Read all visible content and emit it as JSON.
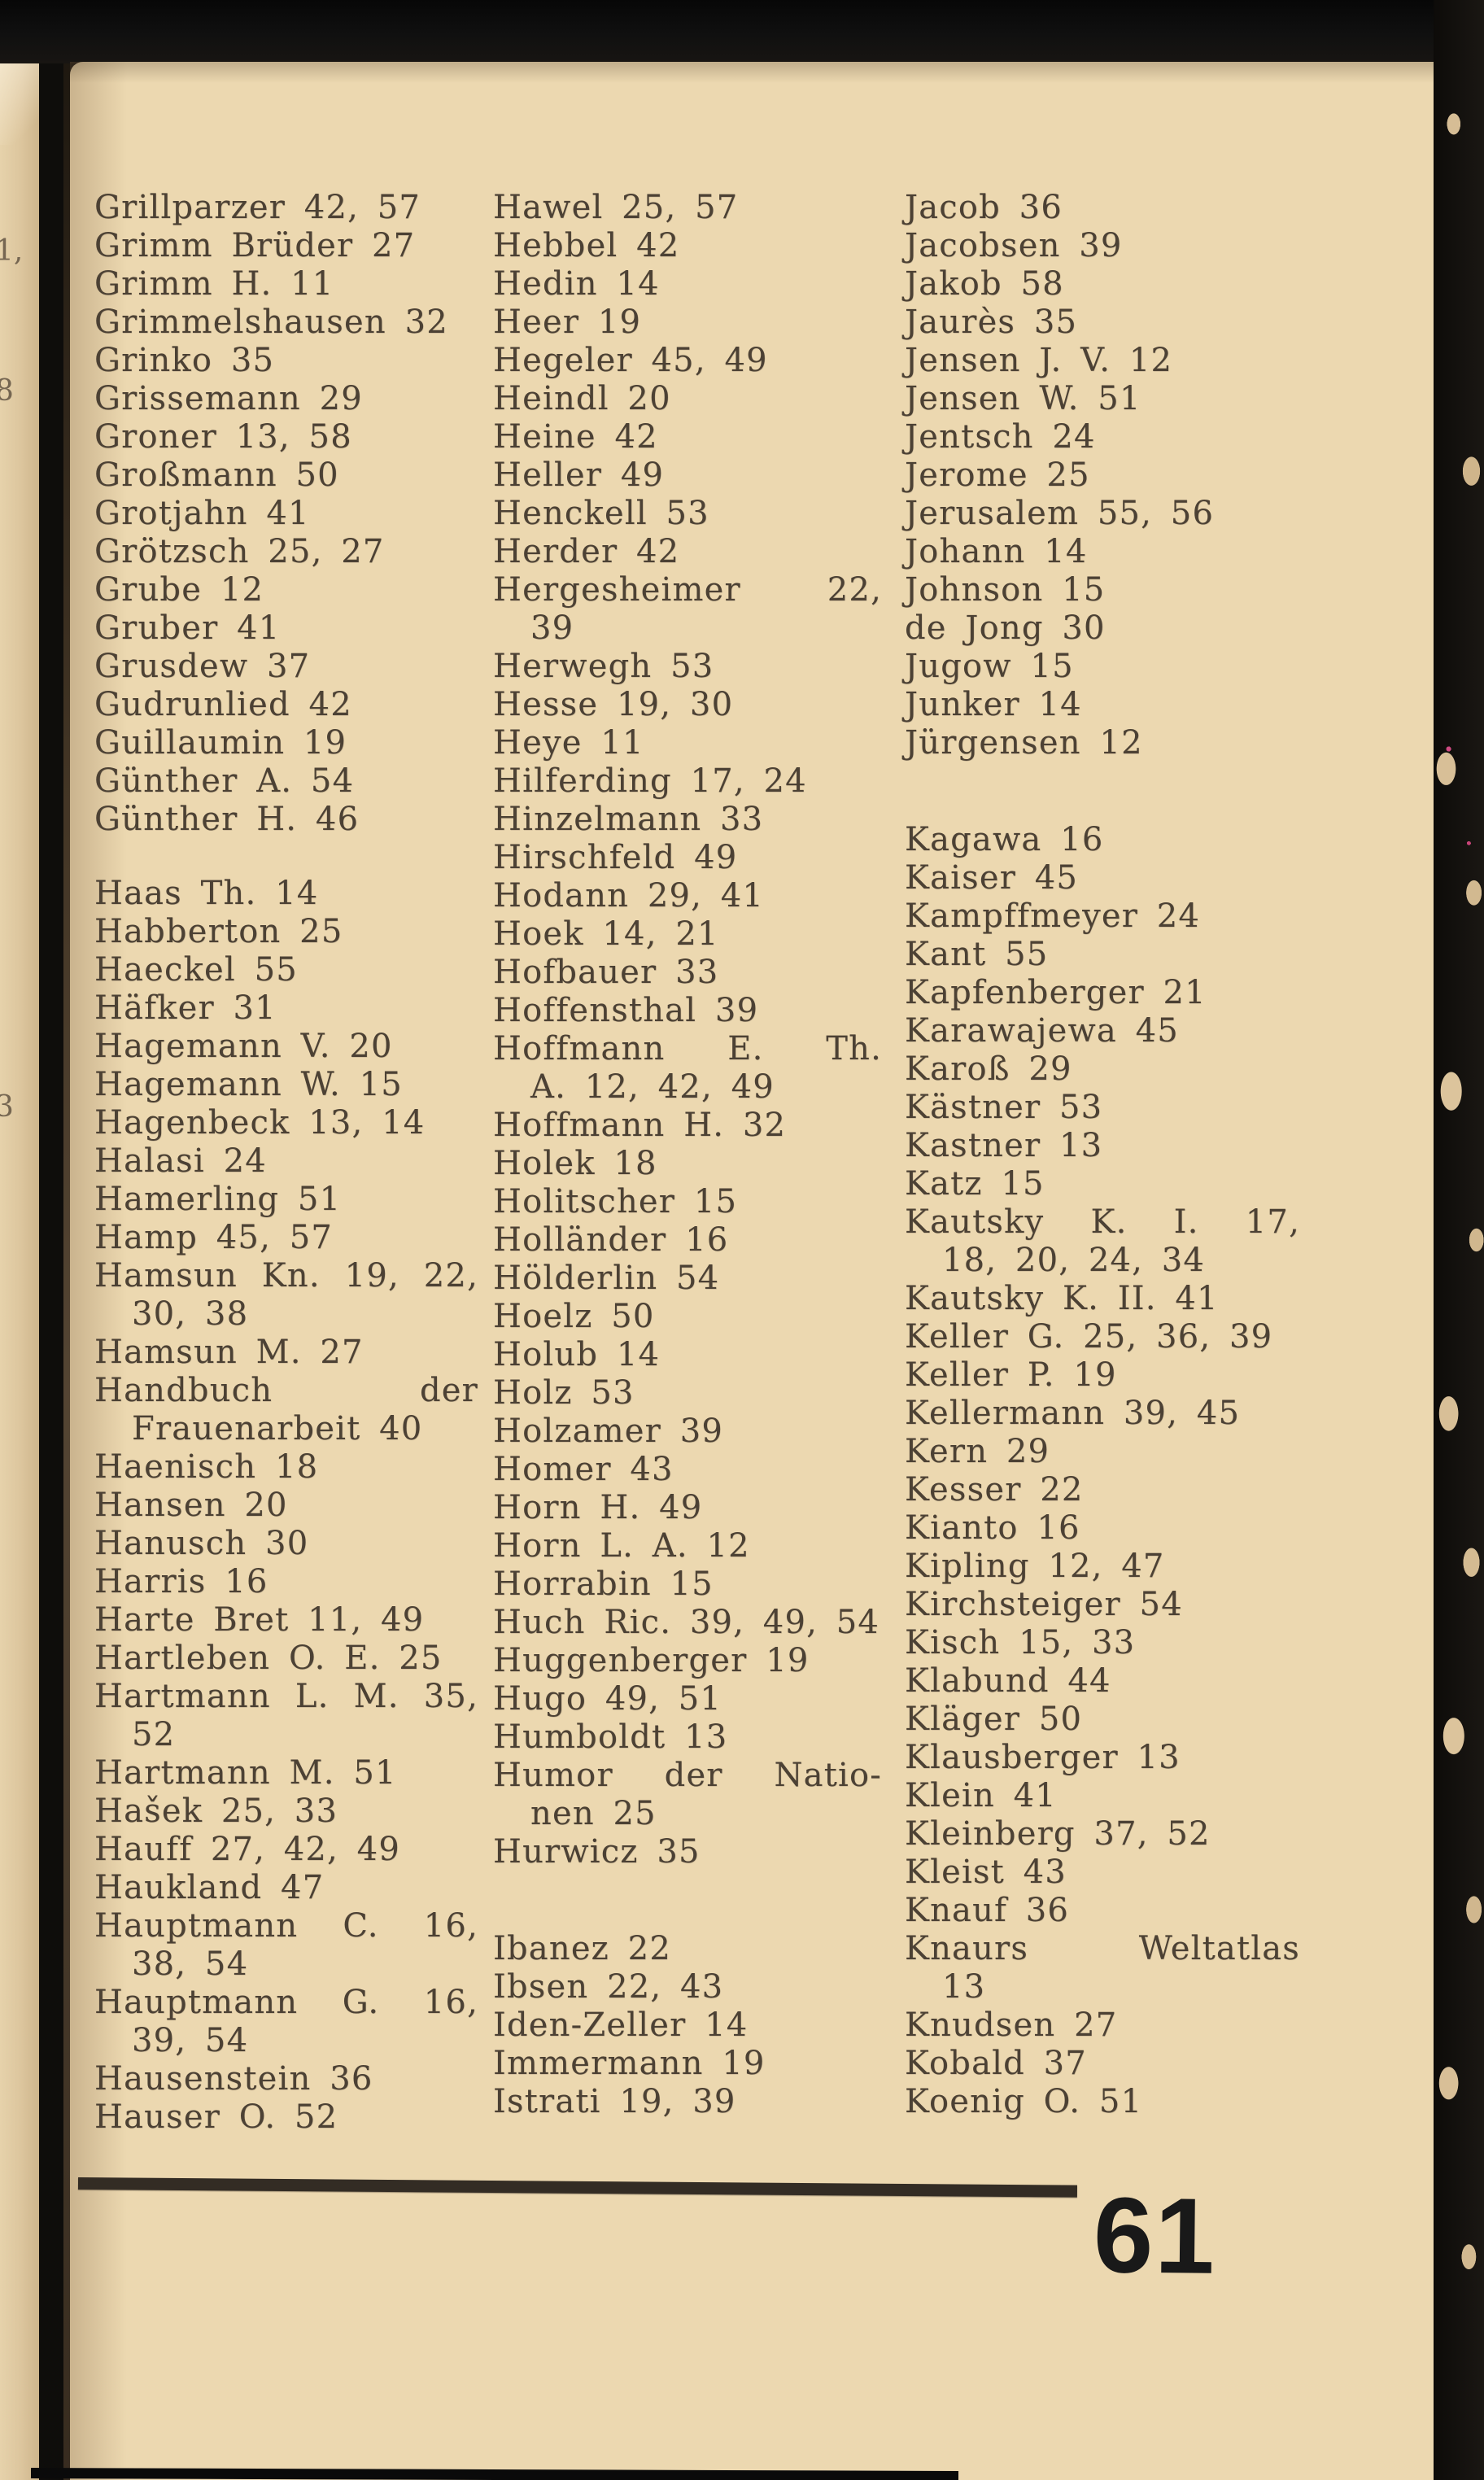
{
  "page": {
    "number": "61",
    "edge_fragments": [
      "1,",
      "8",
      "3"
    ]
  },
  "columns": {
    "col1": [
      {
        "t": "Grillparzer 42, 57"
      },
      {
        "t": "Grimm Brüder 27"
      },
      {
        "t": "Grimm H. 11"
      },
      {
        "t": "Grimmelshausen 32"
      },
      {
        "t": "Grinko 35"
      },
      {
        "t": "Grissemann 29"
      },
      {
        "t": "Groner 13, 58"
      },
      {
        "t": "Großmann 50"
      },
      {
        "t": "Grotjahn 41"
      },
      {
        "t": "Grötzsch 25, 27"
      },
      {
        "t": "Grube 12"
      },
      {
        "t": "Gruber 41"
      },
      {
        "t": "Grusdew 37"
      },
      {
        "t": "Gudrunlied 42"
      },
      {
        "t": "Guillaumin 19"
      },
      {
        "t": "Günther A. 54"
      },
      {
        "t": "Günther H. 46"
      },
      {
        "t": "Haas Th. 14",
        "g": true
      },
      {
        "t": "Habberton 25"
      },
      {
        "t": "Haeckel 55"
      },
      {
        "t": "Häfker 31"
      },
      {
        "t": "Hagemann V. 20"
      },
      {
        "t": "Hagemann W. 15"
      },
      {
        "t": "Hagenbeck 13, 14"
      },
      {
        "t": "Halasi 24"
      },
      {
        "t": "Hamerling 51"
      },
      {
        "t": "Hamp 45, 57"
      },
      {
        "t": "Hamsun Kn. 19, 22,",
        "j": true
      },
      {
        "t": "30, 38",
        "i": true
      },
      {
        "t": "Hamsun M. 27"
      },
      {
        "t": "Handbuch der",
        "j": true
      },
      {
        "t": "Frauenarbeit 40",
        "i": true
      },
      {
        "t": "Haenisch 18"
      },
      {
        "t": "Hansen 20"
      },
      {
        "t": "Hanusch 30"
      },
      {
        "t": "Harris 16"
      },
      {
        "t": "Harte Bret 11, 49"
      },
      {
        "t": "Hartleben O. E. 25"
      },
      {
        "t": "Hartmann L. M. 35,",
        "j": true
      },
      {
        "t": "52",
        "i": true
      },
      {
        "t": "Hartmann M. 51"
      },
      {
        "t": "Hašek 25, 33"
      },
      {
        "t": "Hauff 27, 42, 49"
      },
      {
        "t": "Haukland 47"
      },
      {
        "t": "Hauptmann C. 16,",
        "j": true
      },
      {
        "t": "38, 54",
        "i": true
      },
      {
        "t": "Hauptmann G. 16,",
        "j": true
      },
      {
        "t": "39, 54",
        "i": true
      },
      {
        "t": "Hausenstein 36"
      },
      {
        "t": "Hauser O. 52"
      }
    ],
    "col2": [
      {
        "t": "Hawel 25, 57"
      },
      {
        "t": "Hebbel 42"
      },
      {
        "t": "Hedin 14"
      },
      {
        "t": "Heer 19"
      },
      {
        "t": "Hegeler 45, 49"
      },
      {
        "t": "Heindl 20"
      },
      {
        "t": "Heine 42"
      },
      {
        "t": "Heller 49"
      },
      {
        "t": "Henckell 53"
      },
      {
        "t": "Herder 42"
      },
      {
        "t": "Hergesheimer 22,",
        "j": true
      },
      {
        "t": "39",
        "i": true
      },
      {
        "t": "Herwegh 53"
      },
      {
        "t": "Hesse 19, 30"
      },
      {
        "t": "Heye 11"
      },
      {
        "t": "Hilferding 17, 24"
      },
      {
        "t": "Hinzelmann 33"
      },
      {
        "t": "Hirschfeld 49"
      },
      {
        "t": "Hodann 29, 41"
      },
      {
        "t": "Hoek 14, 21"
      },
      {
        "t": "Hofbauer 33"
      },
      {
        "t": "Hoffensthal 39"
      },
      {
        "t": "Hoffmann E. Th.",
        "j": true
      },
      {
        "t": "A. 12, 42, 49",
        "i": true
      },
      {
        "t": "Hoffmann H. 32"
      },
      {
        "t": "Holek 18"
      },
      {
        "t": "Holitscher 15"
      },
      {
        "t": "Holländer 16"
      },
      {
        "t": "Hölderlin 54"
      },
      {
        "t": "Hoelz 50"
      },
      {
        "t": "Holub 14"
      },
      {
        "t": "Holz 53"
      },
      {
        "t": "Holzamer 39"
      },
      {
        "t": "Homer 43"
      },
      {
        "t": "Horn H. 49"
      },
      {
        "t": "Horn L. A. 12"
      },
      {
        "t": "Horrabin 15"
      },
      {
        "t": "Huch Ric. 39, 49, 54"
      },
      {
        "t": "Huggenberger 19"
      },
      {
        "t": "Hugo 49, 51"
      },
      {
        "t": "Humboldt 13"
      },
      {
        "t": "Humor der Natio-",
        "j": true
      },
      {
        "t": "nen 25",
        "i": true
      },
      {
        "t": "Hurwicz 35"
      },
      {
        "t": "Ibanez 22",
        "g": true
      },
      {
        "t": "Ibsen 22, 43"
      },
      {
        "t": "Iden-Zeller 14"
      },
      {
        "t": "Immermann 19"
      },
      {
        "t": "Istrati 19, 39"
      }
    ],
    "col3": [
      {
        "t": "Jacob 36"
      },
      {
        "t": "Jacobsen 39"
      },
      {
        "t": "Jakob 58"
      },
      {
        "t": "Jaurès 35"
      },
      {
        "t": "Jensen J. V. 12"
      },
      {
        "t": "Jensen W. 51"
      },
      {
        "t": "Jentsch 24"
      },
      {
        "t": "Jerome 25"
      },
      {
        "t": "Jerusalem 55, 56"
      },
      {
        "t": "Johann 14"
      },
      {
        "t": "Johnson 15"
      },
      {
        "t": "de Jong 30"
      },
      {
        "t": "Jugow 15"
      },
      {
        "t": "Junker 14"
      },
      {
        "t": "Jürgensen 12"
      },
      {
        "t": "Kagawa 16",
        "g": true
      },
      {
        "t": "Kaiser 45"
      },
      {
        "t": "Kampffmeyer 24"
      },
      {
        "t": "Kant 55"
      },
      {
        "t": "Kapfenberger 21"
      },
      {
        "t": "Karawajewa 45"
      },
      {
        "t": "Karoß 29"
      },
      {
        "t": "Kästner 53"
      },
      {
        "t": "Kastner 13"
      },
      {
        "t": "Katz 15"
      },
      {
        "t": "Kautsky K. I. 17,",
        "j": true
      },
      {
        "t": "18, 20, 24, 34",
        "i": true
      },
      {
        "t": "Kautsky K. II. 41"
      },
      {
        "t": "Keller G. 25, 36, 39"
      },
      {
        "t": "Keller P. 19"
      },
      {
        "t": "Kellermann 39, 45"
      },
      {
        "t": "Kern 29"
      },
      {
        "t": "Kesser 22"
      },
      {
        "t": "Kianto 16"
      },
      {
        "t": "Kipling 12, 47"
      },
      {
        "t": "Kirchsteiger 54"
      },
      {
        "t": "Kisch 15, 33"
      },
      {
        "t": "Klabund 44"
      },
      {
        "t": "Kläger 50"
      },
      {
        "t": "Klausberger 13"
      },
      {
        "t": "Klein 41"
      },
      {
        "t": "Kleinberg 37, 52"
      },
      {
        "t": "Kleist 43"
      },
      {
        "t": "Knauf 36"
      },
      {
        "t": "Knaurs Weltatlas",
        "j": true
      },
      {
        "t": "13",
        "i": true
      },
      {
        "t": "Knudsen 27"
      },
      {
        "t": "Kobald 37"
      },
      {
        "t": "Koenig O. 51"
      }
    ]
  }
}
